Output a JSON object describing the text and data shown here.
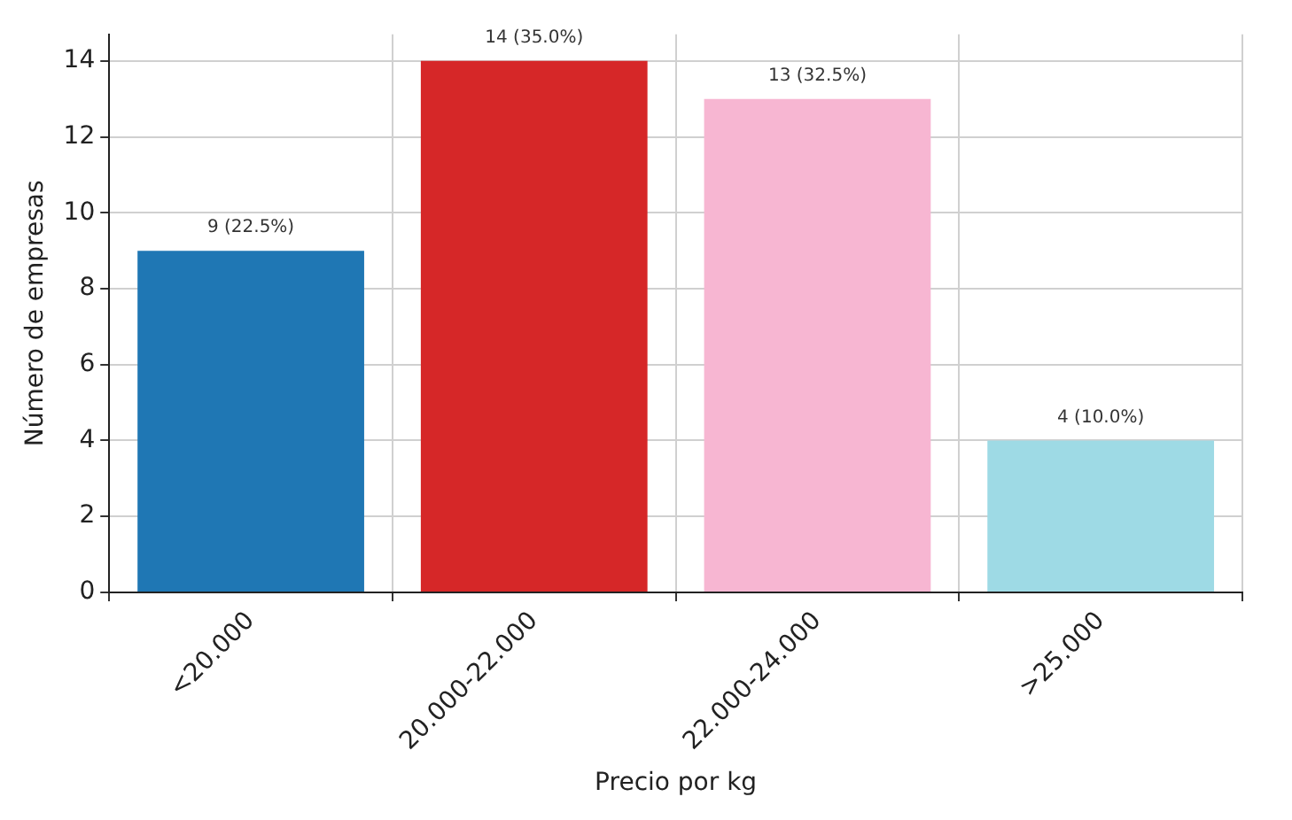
{
  "chart_data": {
    "type": "bar",
    "xlabel": "Precio por kg",
    "ylabel": "Número de empresas",
    "categories": [
      "<20.000",
      "20.000-22.000",
      "22.000-24.000",
      ">25.000"
    ],
    "values": [
      9,
      14,
      13,
      4
    ],
    "colors": [
      "#1f77b4",
      "#d62728",
      "#f7b6d2",
      "#9edae5"
    ],
    "value_labels": [
      "9 (22.5%)",
      "14 (35.0%)",
      "13 (32.5%)",
      "4 (10.0%)"
    ],
    "ylim": [
      0,
      14.7
    ],
    "yticks": [
      0,
      2,
      4,
      6,
      8,
      10,
      12,
      14
    ],
    "grid": true
  }
}
